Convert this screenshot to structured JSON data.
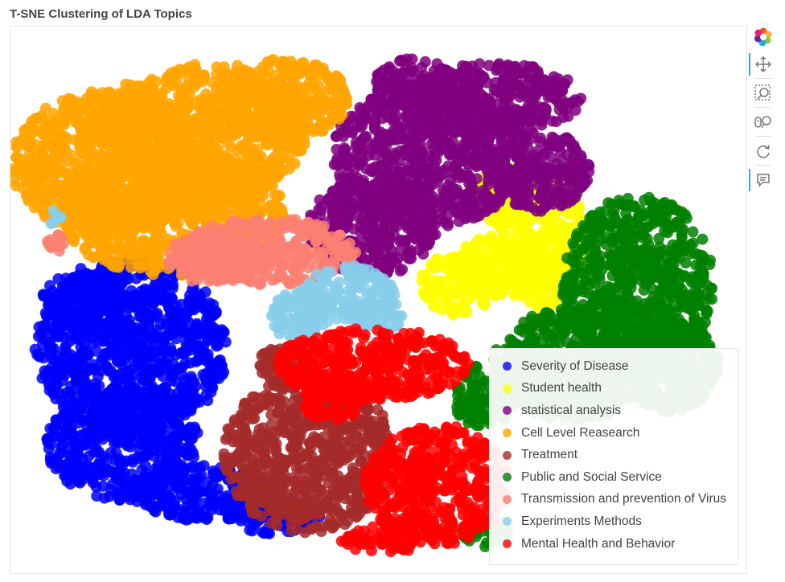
{
  "title": "T-SNE Clustering of LDA Topics",
  "chart_data": {
    "type": "scatter",
    "title": "T-SNE Clustering of LDA Topics",
    "xlabel": "",
    "ylabel": "",
    "grid": false,
    "axes_visible": false,
    "legend_position": "bottom-right",
    "series": [
      {
        "name": "Severity of Disease",
        "color": "#0000ff"
      },
      {
        "name": "Student health",
        "color": "#ffff00"
      },
      {
        "name": "statistical analysis",
        "color": "#800080"
      },
      {
        "name": "Cell Level Reasearch",
        "color": "#ffa500"
      },
      {
        "name": "Treatment",
        "color": "#a52a2a"
      },
      {
        "name": "Public and Social Service",
        "color": "#008000"
      },
      {
        "name": "Transmission and prevention of Virus",
        "color": "#fa8072"
      },
      {
        "name": "Experiments Methods",
        "color": "#87ceeb"
      },
      {
        "name": "Mental Health and Behavior",
        "color": "#ff0000"
      }
    ]
  },
  "toolbar": {
    "tools": [
      {
        "name": "bokeh-logo-icon",
        "interactable": false
      },
      {
        "name": "pan-tool-icon",
        "interactable": true,
        "active": true
      },
      {
        "name": "box-zoom-tool-icon",
        "interactable": true
      },
      {
        "name": "wheel-zoom-tool-icon",
        "interactable": true
      },
      {
        "name": "reset-tool-icon",
        "interactable": true
      },
      {
        "name": "hover-tool-icon",
        "interactable": true,
        "active": true
      }
    ]
  }
}
